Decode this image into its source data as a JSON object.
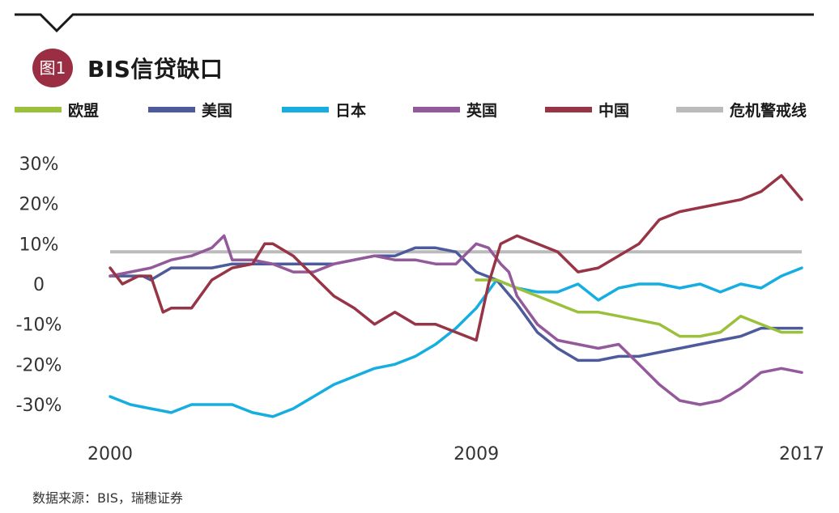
{
  "header": {
    "badge": "图1",
    "title": "BIS信贷缺口"
  },
  "legend": [
    {
      "label": "欧盟",
      "color": "#9bc13c"
    },
    {
      "label": "美国",
      "color": "#4d5a9c"
    },
    {
      "label": "日本",
      "color": "#16aee0"
    },
    {
      "label": "英国",
      "color": "#93599b"
    },
    {
      "label": "中国",
      "color": "#973446"
    },
    {
      "label": "危机警戒线",
      "color": "#bbbbbb"
    }
  ],
  "source": "数据来源：BIS，瑞穗证券",
  "chart_data": {
    "type": "line",
    "title": "BIS信贷缺口",
    "xlabel": "",
    "ylabel": "",
    "xlim": [
      2000,
      2017
    ],
    "ylim": [
      -30,
      30
    ],
    "x_ticks": [
      {
        "value": 2000,
        "label": "2000"
      },
      {
        "value": 2009,
        "label": "2009"
      },
      {
        "value": 2017,
        "label": "2017"
      }
    ],
    "y_ticks": [
      {
        "value": 30,
        "label": "30%"
      },
      {
        "value": 20,
        "label": "20%"
      },
      {
        "value": 10,
        "label": "10%"
      },
      {
        "value": 0,
        "label": "0"
      },
      {
        "value": -10,
        "label": "-10%"
      },
      {
        "value": -20,
        "label": "-20%"
      },
      {
        "value": -30,
        "label": "-30%"
      }
    ],
    "threshold": {
      "name": "危机警戒线",
      "value": 8,
      "x_start": 2000,
      "x_end": 2017
    },
    "series": [
      {
        "name": "欧盟",
        "color": "#9bc13c",
        "x": [
          2009.0,
          2009.5,
          2010.0,
          2010.5,
          2011.0,
          2011.5,
          2012.0,
          2012.5,
          2013.0,
          2013.5,
          2014.0,
          2014.5,
          2015.0,
          2015.5,
          2016.0,
          2016.5,
          2017.0
        ],
        "y": [
          1,
          1,
          -1,
          -3,
          -5,
          -7,
          -7,
          -8,
          -9,
          -10,
          -13,
          -13,
          -12,
          -8,
          -10,
          -12,
          -12
        ]
      },
      {
        "name": "美国",
        "color": "#4d5a9c",
        "x": [
          2000.0,
          2000.4,
          2000.8,
          2001.0,
          2001.5,
          2002.0,
          2002.5,
          2003.0,
          2003.5,
          2004.0,
          2004.5,
          2005.0,
          2005.5,
          2006.0,
          2006.5,
          2007.0,
          2007.5,
          2008.0,
          2008.5,
          2009.0,
          2009.5,
          2010.0,
          2010.5,
          2011.0,
          2011.5,
          2012.0,
          2012.5,
          2013.0,
          2013.5,
          2014.0,
          2014.5,
          2015.0,
          2015.5,
          2016.0,
          2016.5,
          2016.8,
          2017.0
        ],
        "y": [
          2,
          2,
          2,
          1,
          4,
          4,
          4,
          5,
          5,
          5,
          5,
          5,
          5,
          6,
          7,
          7,
          9,
          9,
          8,
          3,
          1,
          -5,
          -12,
          -16,
          -19,
          -19,
          -18,
          -18,
          -17,
          -16,
          -15,
          -14,
          -13,
          -11,
          -11,
          -11,
          -11
        ]
      },
      {
        "name": "日本",
        "color": "#16aee0",
        "x": [
          2000.0,
          2000.5,
          2001.0,
          2001.5,
          2002.0,
          2002.5,
          2003.0,
          2003.5,
          2004.0,
          2004.5,
          2005.0,
          2005.5,
          2006.0,
          2006.5,
          2007.0,
          2007.5,
          2008.0,
          2008.5,
          2009.0,
          2009.5,
          2010.0,
          2010.5,
          2011.0,
          2011.5,
          2012.0,
          2012.5,
          2013.0,
          2013.5,
          2014.0,
          2014.5,
          2015.0,
          2015.5,
          2016.0,
          2016.5,
          2017.0
        ],
        "y": [
          -28,
          -30,
          -31,
          -32,
          -30,
          -30,
          -30,
          -32,
          -33,
          -31,
          -28,
          -25,
          -23,
          -21,
          -20,
          -18,
          -15,
          -11,
          -6,
          1,
          -1,
          -2,
          -2,
          0,
          -4,
          -1,
          0,
          0,
          -1,
          0,
          -2,
          0,
          -1,
          2,
          4
        ]
      },
      {
        "name": "英国",
        "color": "#93599b",
        "x": [
          2000.0,
          2000.5,
          2001.0,
          2001.5,
          2002.0,
          2002.5,
          2002.8,
          2003.0,
          2003.5,
          2004.0,
          2004.5,
          2005.0,
          2005.5,
          2006.0,
          2006.5,
          2007.0,
          2007.5,
          2008.0,
          2008.5,
          2009.0,
          2009.3,
          2009.6,
          2009.8,
          2010.0,
          2010.5,
          2011.0,
          2011.5,
          2012.0,
          2012.5,
          2013.0,
          2013.5,
          2014.0,
          2014.5,
          2015.0,
          2015.5,
          2016.0,
          2016.5,
          2017.0
        ],
        "y": [
          2,
          3,
          4,
          6,
          7,
          9,
          12,
          6,
          6,
          5,
          3,
          3,
          5,
          6,
          7,
          6,
          6,
          5,
          5,
          10,
          9,
          5,
          3,
          -3,
          -10,
          -14,
          -15,
          -16,
          -15,
          -20,
          -25,
          -29,
          -30,
          -29,
          -26,
          -22,
          -21,
          -22
        ]
      },
      {
        "name": "中国",
        "color": "#973446",
        "x": [
          2000.0,
          2000.3,
          2000.7,
          2001.0,
          2001.3,
          2001.5,
          2002.0,
          2002.5,
          2003.0,
          2003.5,
          2003.8,
          2004.0,
          2004.5,
          2005.0,
          2005.5,
          2006.0,
          2006.5,
          2007.0,
          2007.5,
          2008.0,
          2008.5,
          2009.0,
          2009.3,
          2009.6,
          2010.0,
          2010.5,
          2011.0,
          2011.5,
          2012.0,
          2012.5,
          2013.0,
          2013.5,
          2014.0,
          2014.5,
          2015.0,
          2015.5,
          2016.0,
          2016.5,
          2017.0
        ],
        "y": [
          4,
          0,
          2,
          2,
          -7,
          -6,
          -6,
          1,
          4,
          5,
          10,
          10,
          7,
          2,
          -3,
          -6,
          -10,
          -7,
          -10,
          -10,
          -12,
          -14,
          0,
          10,
          12,
          10,
          8,
          3,
          4,
          7,
          10,
          16,
          18,
          19,
          20,
          21,
          23,
          27,
          21
        ]
      }
    ]
  }
}
